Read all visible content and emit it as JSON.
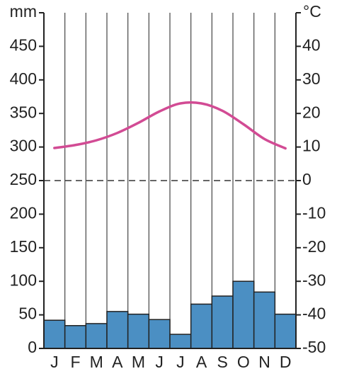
{
  "chart_data": {
    "type": "climate",
    "ylabel": "mm",
    "y2label": "°C",
    "categories": [
      "J",
      "F",
      "M",
      "A",
      "M",
      "J",
      "J",
      "A",
      "S",
      "O",
      "N",
      "D"
    ],
    "series": [
      {
        "type": "bar",
        "color": "#4b8fc3",
        "values": [
          42,
          34,
          37,
          55,
          51,
          43,
          21,
          66,
          78,
          100,
          84,
          51
        ]
      },
      {
        "type": "line",
        "axis": "y2",
        "color": "#d24b94",
        "values": [
          9.7,
          10.6,
          12,
          14.2,
          17.2,
          20.6,
          23,
          23,
          20.8,
          16.8,
          12.4,
          9.6
        ]
      }
    ],
    "ylim": [
      0,
      500
    ],
    "yticks": [
      0,
      50,
      100,
      150,
      200,
      250,
      300,
      350,
      400,
      450
    ],
    "y2lim": [
      -50,
      50
    ],
    "y2ticks": [
      -50,
      -40,
      -30,
      -20,
      -10,
      0,
      10,
      20,
      30,
      40
    ],
    "vertical_grid": true,
    "zero_line": true
  }
}
